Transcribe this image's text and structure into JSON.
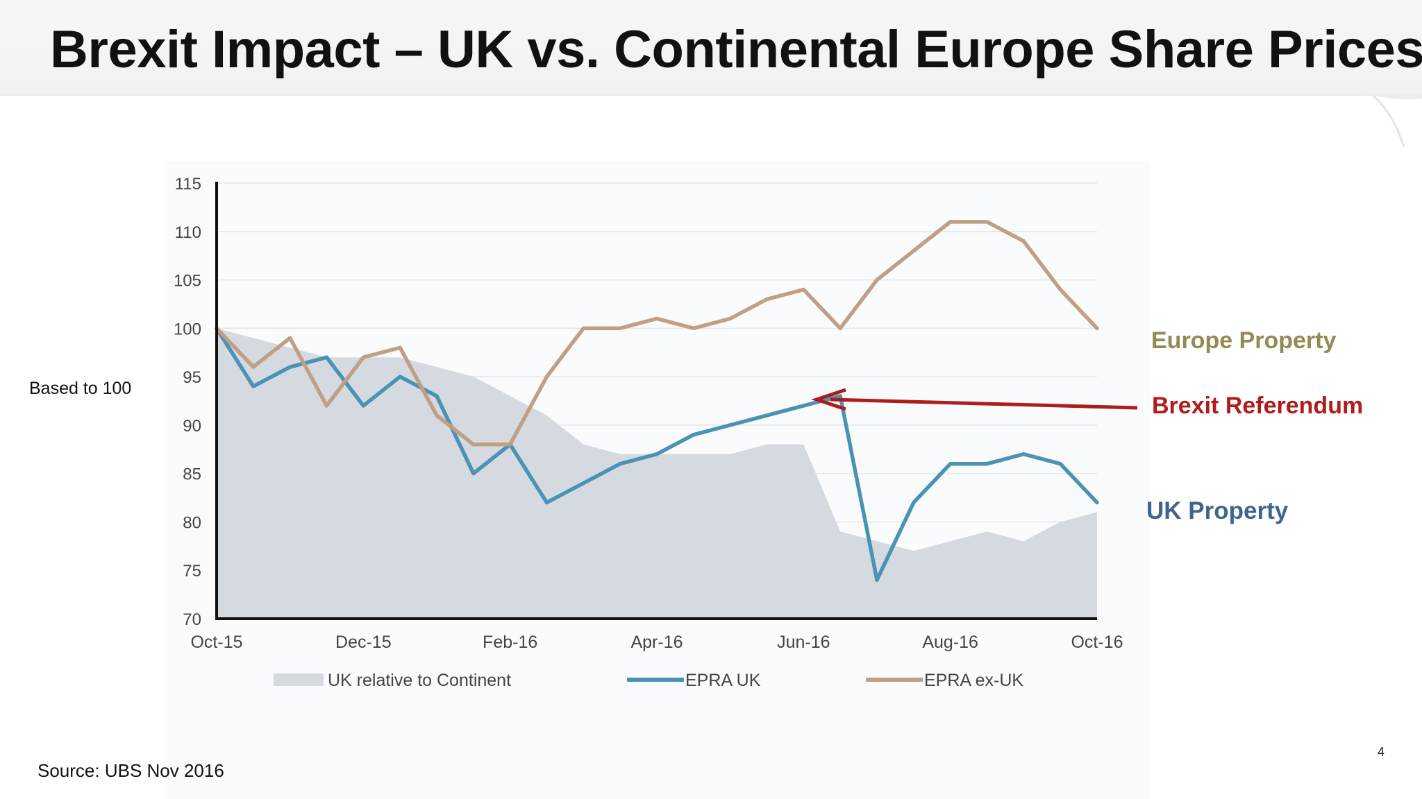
{
  "slide": {
    "title": "Brexit Impact – UK vs. Continental Europe Share Prices",
    "y_note": "Based to 100",
    "source": "Source: UBS Nov 2016",
    "page_number": "4"
  },
  "annotations": {
    "europe_label": "Europe Property",
    "brexit_label": "Brexit Referendum",
    "uk_label": "UK Property"
  },
  "colors": {
    "area": "#d5d9e0",
    "epra_uk": "#4a93b5",
    "epra_ex_uk": "#c0a084",
    "europe_text": "#948a54",
    "brexit_text": "#b01c1c",
    "uk_text": "#3c6690",
    "axis": "#111111",
    "grid": "#e6e6e6",
    "tick_text": "#444444"
  },
  "chart_data": {
    "type": "line",
    "x": [
      0,
      0.5,
      1,
      1.5,
      2,
      2.5,
      3,
      3.5,
      4,
      4.5,
      5,
      5.5,
      6,
      6.5,
      7,
      7.5,
      8,
      8.5,
      9,
      9.5,
      10,
      10.5,
      11,
      11.5,
      12
    ],
    "x_tick_labels": [
      "Oct-15",
      "Dec-15",
      "Feb-16",
      "Apr-16",
      "Jun-16",
      "Aug-16",
      "Oct-16"
    ],
    "x_tick_positions": [
      0,
      2,
      4,
      6,
      8,
      10,
      12
    ],
    "ylim": [
      70,
      115
    ],
    "y_ticks": [
      70,
      75,
      80,
      85,
      90,
      95,
      100,
      105,
      110,
      115
    ],
    "grid": "horizontal",
    "legend_position": "bottom",
    "series": [
      {
        "name": "UK relative to Continent",
        "kind": "area",
        "values": [
          100,
          99,
          98,
          97,
          97,
          97,
          96,
          95,
          93,
          91,
          88,
          87,
          87,
          87,
          87,
          88,
          88,
          79,
          78,
          77,
          78,
          79,
          78,
          80,
          81
        ]
      },
      {
        "name": "EPRA UK",
        "kind": "line",
        "values": [
          100,
          94,
          96,
          97,
          92,
          95,
          93,
          85,
          88,
          82,
          84,
          86,
          87,
          89,
          90,
          91,
          92,
          93,
          74,
          82,
          86,
          86,
          87,
          86,
          82
        ]
      },
      {
        "name": "EPRA ex-UK",
        "kind": "line",
        "values": [
          100,
          96,
          99,
          92,
          97,
          98,
          91,
          88,
          88,
          95,
          100,
          100,
          101,
          100,
          101,
          103,
          104,
          100,
          105,
          108,
          111,
          111,
          109,
          104,
          100
        ]
      }
    ]
  }
}
